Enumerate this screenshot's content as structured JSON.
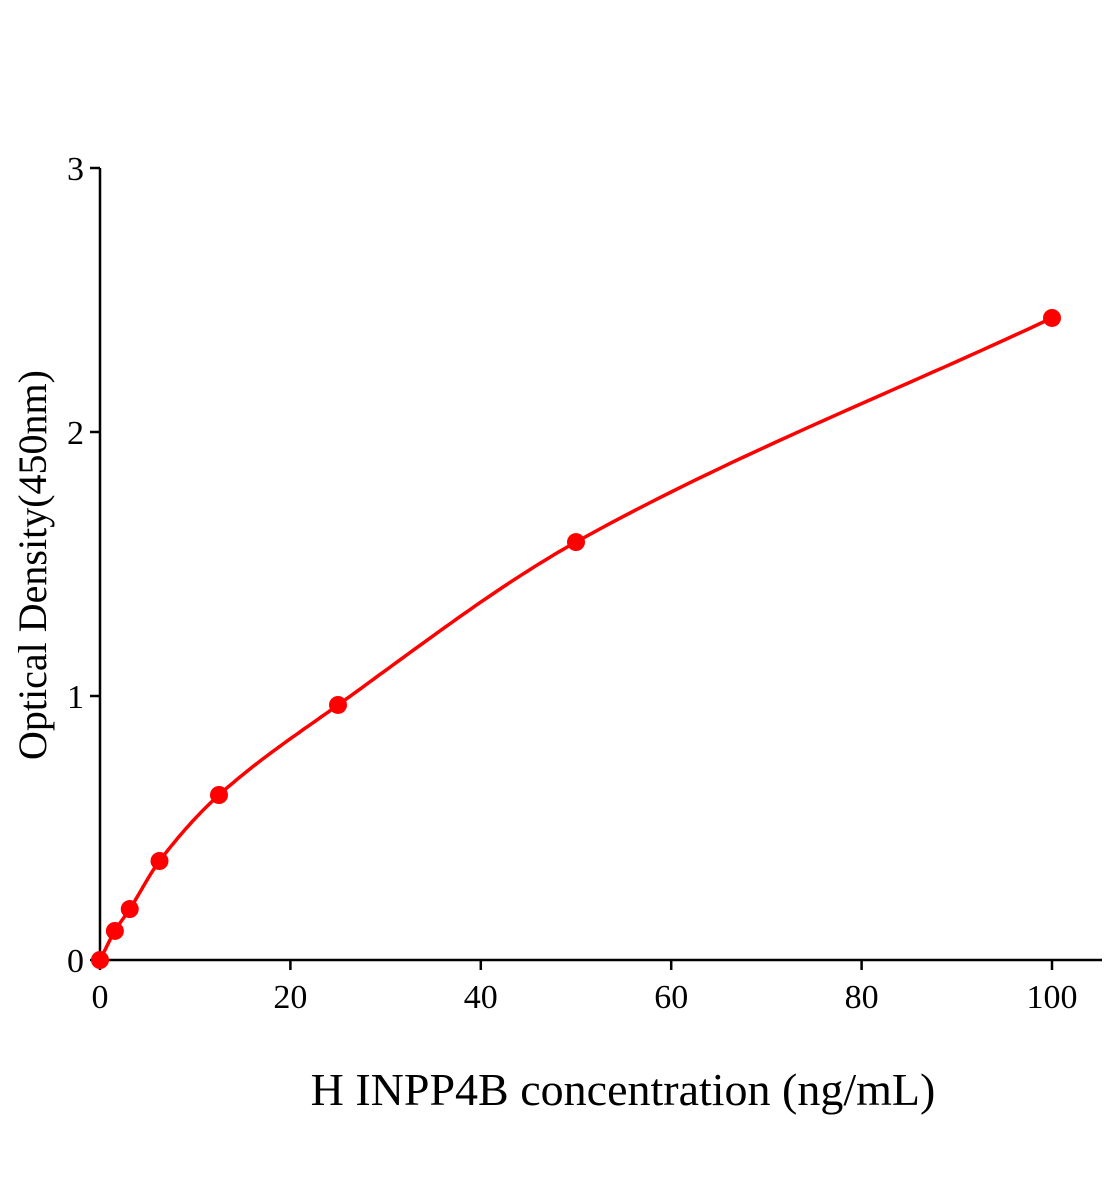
{
  "chart_data": {
    "type": "scatter",
    "title": "",
    "xlabel": "H INPP4B concentration (ng/mL)",
    "ylabel": "Optical Density(450nm)",
    "xlim": [
      0,
      105
    ],
    "ylim": [
      0,
      3
    ],
    "xticks": [
      0,
      20,
      40,
      60,
      80,
      100
    ],
    "yticks": [
      0,
      1,
      2,
      3
    ],
    "grid": false,
    "series": [
      {
        "x": [
          0,
          1.5625,
          3.125,
          6.25,
          12.5,
          25,
          50,
          100
        ],
        "y": [
          0.0,
          0.11,
          0.193,
          0.375,
          0.625,
          0.966,
          1.583,
          2.432
        ],
        "color": "#ff0000",
        "fit_curve": true
      }
    ]
  }
}
